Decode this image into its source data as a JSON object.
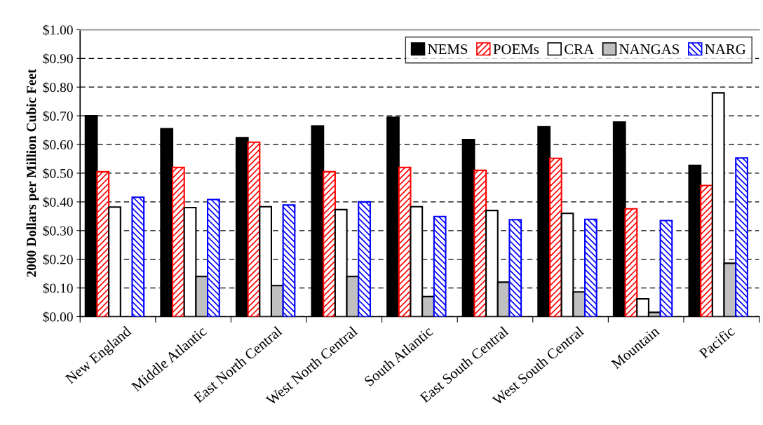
{
  "chart_data": {
    "type": "bar",
    "ylabel": "2000 Dollars per Million Cubic Feet",
    "categories": [
      "New England",
      "Middle Atlantic",
      "East North Central",
      "West North Central",
      "South Atlantic",
      "East South Central",
      "West South Central",
      "Mountain",
      "Pacific"
    ],
    "series": [
      {
        "name": "NEMS",
        "color": "#000000",
        "values": [
          0.7,
          0.655,
          0.624,
          0.665,
          0.695,
          0.617,
          0.662,
          0.678,
          0.527
        ]
      },
      {
        "name": "POEMs",
        "color": "#ff0000",
        "values": [
          0.505,
          0.52,
          0.608,
          0.505,
          0.52,
          0.51,
          0.552,
          0.376,
          0.457
        ]
      },
      {
        "name": "CRA",
        "color": "#ffffff",
        "values": [
          0.382,
          0.38,
          0.383,
          0.373,
          0.383,
          0.37,
          0.36,
          0.062,
          0.78
        ]
      },
      {
        "name": "NANGAS",
        "color": "#c0c0c0",
        "values": [
          null,
          0.14,
          0.108,
          0.14,
          0.07,
          0.12,
          0.086,
          0.015,
          0.186
        ]
      },
      {
        "name": "NARG",
        "color": "#0000ff",
        "values": [
          0.416,
          0.408,
          0.389,
          0.4,
          0.349,
          0.338,
          0.339,
          0.335,
          0.553
        ]
      }
    ],
    "ylim": [
      0,
      1.0
    ],
    "yticks": [
      {
        "value": 0,
        "label": "$0.00"
      },
      {
        "value": 0.1,
        "label": "$0.10"
      },
      {
        "value": 0.2,
        "label": "$0.20"
      },
      {
        "value": 0.3,
        "label": "$0.30"
      },
      {
        "value": 0.4,
        "label": "$0.40"
      },
      {
        "value": 0.5,
        "label": "$0.50"
      },
      {
        "value": 0.6,
        "label": "$0.60"
      },
      {
        "value": 0.7,
        "label": "$0.70"
      },
      {
        "value": 0.8,
        "label": "$0.80"
      },
      {
        "value": 0.9,
        "label": "$0.90"
      },
      {
        "value": 1.0,
        "label": "$1.00"
      }
    ],
    "grid": "y",
    "legend": "top right"
  }
}
